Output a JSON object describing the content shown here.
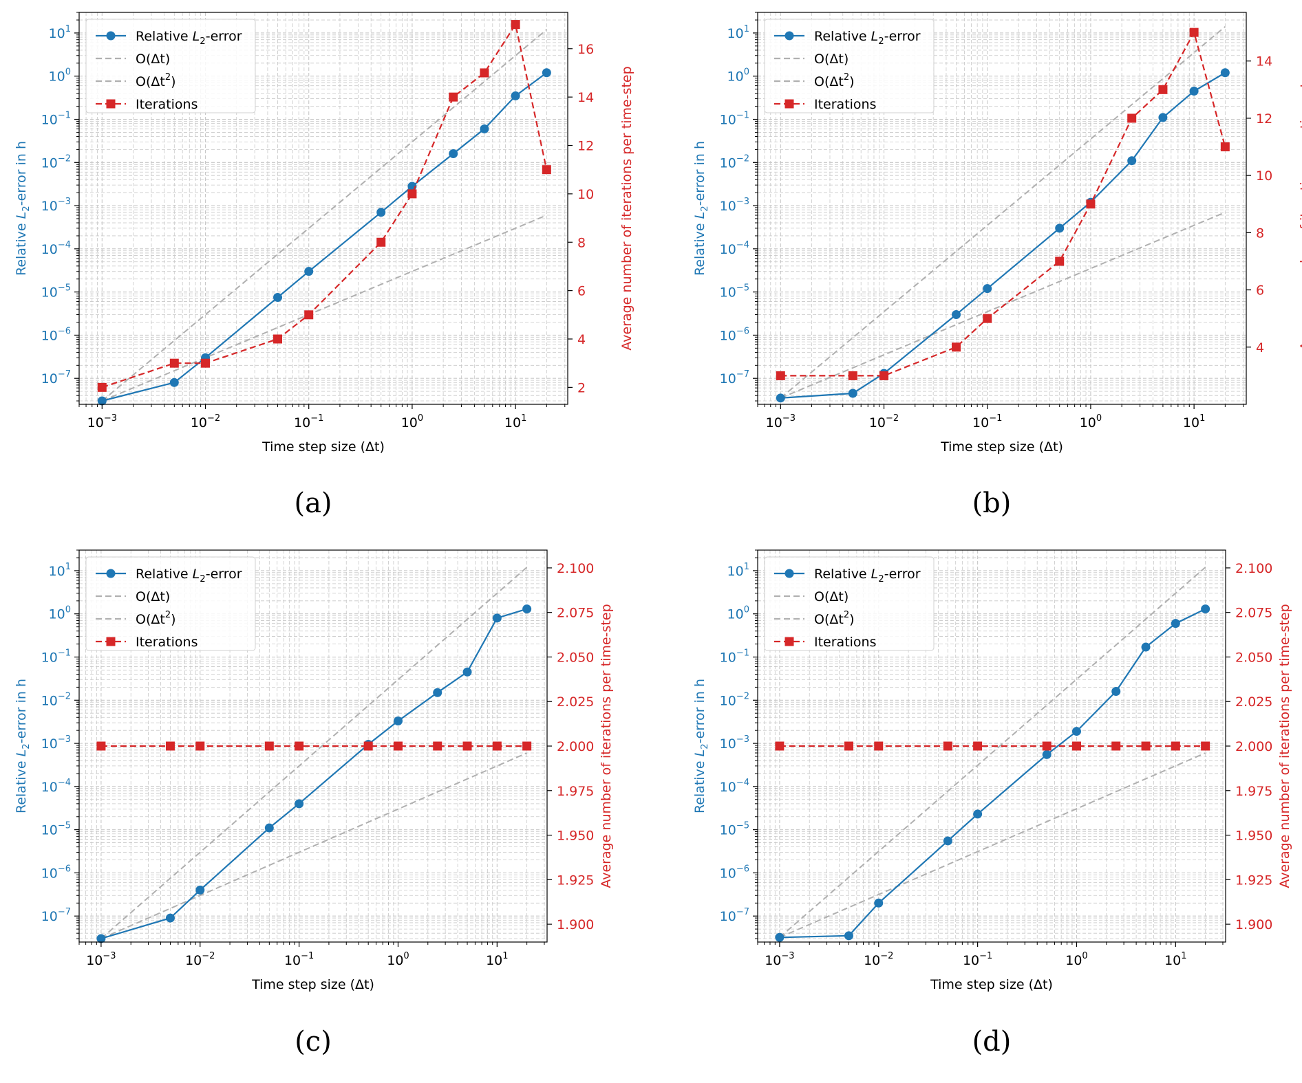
{
  "chart_data": [
    {
      "type": "line",
      "caption": "(a)",
      "xlabel": "Time step size (Δt)",
      "ylabel_left": "Relative L2-error in h",
      "ylabel_right": "Average number of iterations per time-step",
      "x_scale": "log",
      "y_left_scale": "log",
      "xlim": [
        0.0006,
        32
      ],
      "ylim_left": [
        2.5e-08,
        30
      ],
      "ylim_right": [
        1.3,
        17.5
      ],
      "x_ticks": [
        "10−3",
        "10−2",
        "10−1",
        "100",
        "101"
      ],
      "y_left_ticks": [
        "10−7",
        "10−6",
        "10−5",
        "10−4",
        "10−3",
        "10−2",
        "10−1",
        "100",
        "101"
      ],
      "y_right_ticks": [
        "2",
        "4",
        "6",
        "8",
        "10",
        "12",
        "14",
        "16"
      ],
      "y_right_tick_values": [
        2,
        4,
        6,
        8,
        10,
        12,
        14,
        16
      ],
      "legend_position": "top-left",
      "legend": [
        "Relative L2-error",
        "O(Δt)",
        "O(Δt2)",
        "Iterations"
      ],
      "grid": true,
      "x": [
        0.001,
        0.005,
        0.01,
        0.05,
        0.1,
        0.5,
        1,
        2.5,
        5,
        10,
        20
      ],
      "error": [
        3e-08,
        8e-08,
        3e-07,
        7.5e-06,
        3e-05,
        0.0007,
        0.0028,
        0.016,
        0.06,
        0.35,
        1.2
      ],
      "order1": [
        [
          0.001,
          3e-08
        ],
        [
          20,
          0.0006
        ]
      ],
      "order2": [
        [
          0.001,
          3e-08
        ],
        [
          20,
          12
        ]
      ],
      "iterations": [
        2,
        3,
        3,
        4,
        5,
        8,
        10,
        14,
        15,
        17,
        11
      ]
    },
    {
      "type": "line",
      "caption": "(b)",
      "xlabel": "Time step size (Δt)",
      "ylabel_left": "Relative L2-error in h",
      "ylabel_right": "Average number of iterations per time-step",
      "x_scale": "log",
      "y_left_scale": "log",
      "xlim": [
        0.0006,
        32
      ],
      "ylim_left": [
        2.5e-08,
        30
      ],
      "ylim_right": [
        2.0,
        15.7
      ],
      "x_ticks": [
        "10−3",
        "10−2",
        "10−1",
        "100",
        "101"
      ],
      "y_left_ticks": [
        "10−7",
        "10−6",
        "10−5",
        "10−4",
        "10−3",
        "10−2",
        "10−1",
        "100",
        "101"
      ],
      "y_right_ticks": [
        "4",
        "6",
        "8",
        "10",
        "12",
        "14"
      ],
      "y_right_tick_values": [
        4,
        6,
        8,
        10,
        12,
        14
      ],
      "legend_position": "top-left",
      "legend": [
        "Relative L2-error",
        "O(Δt)",
        "O(Δt2)",
        "Iterations"
      ],
      "grid": true,
      "x": [
        0.001,
        0.005,
        0.01,
        0.05,
        0.1,
        0.5,
        1,
        2.5,
        5,
        10,
        20
      ],
      "error": [
        3.5e-08,
        4.5e-08,
        1.3e-07,
        3e-06,
        1.2e-05,
        0.0003,
        0.0012,
        0.011,
        0.11,
        0.45,
        1.2
      ],
      "order1": [
        [
          0.001,
          3.5e-08
        ],
        [
          20,
          0.0007
        ]
      ],
      "order2": [
        [
          0.001,
          3.5e-08
        ],
        [
          20,
          14
        ]
      ],
      "iterations": [
        3,
        3,
        3,
        4,
        5,
        7,
        9,
        12,
        13,
        15,
        11
      ]
    },
    {
      "type": "line",
      "caption": "(c)",
      "xlabel": "Time step size (Δt)",
      "ylabel_left": "Relative L2-error in h",
      "ylabel_right": "Average number of iterations per time-step",
      "x_scale": "log",
      "y_left_scale": "log",
      "xlim": [
        0.0006,
        32
      ],
      "ylim_left": [
        2.5e-08,
        30
      ],
      "ylim_right": [
        1.89,
        2.11
      ],
      "x_ticks": [
        "10−3",
        "10−2",
        "10−1",
        "100",
        "101"
      ],
      "y_left_ticks": [
        "10−7",
        "10−6",
        "10−5",
        "10−4",
        "10−3",
        "10−2",
        "10−1",
        "100",
        "101"
      ],
      "y_right_ticks": [
        "1.900",
        "1.925",
        "1.950",
        "1.975",
        "2.000",
        "2.025",
        "2.050",
        "2.075",
        "2.100"
      ],
      "y_right_tick_values": [
        1.9,
        1.925,
        1.95,
        1.975,
        2.0,
        2.025,
        2.05,
        2.075,
        2.1
      ],
      "legend_position": "top-left",
      "legend": [
        "Relative L2-error",
        "O(Δt)",
        "O(Δt2)",
        "Iterations"
      ],
      "grid": true,
      "x": [
        0.001,
        0.005,
        0.01,
        0.05,
        0.1,
        0.5,
        1,
        2.5,
        5,
        10,
        20
      ],
      "error": [
        3e-08,
        9e-08,
        4e-07,
        1.1e-05,
        4e-05,
        0.00095,
        0.0033,
        0.015,
        0.045,
        0.8,
        1.3
      ],
      "order1": [
        [
          0.001,
          3e-08
        ],
        [
          20,
          0.0006
        ]
      ],
      "order2": [
        [
          0.001,
          3e-08
        ],
        [
          20,
          12
        ]
      ],
      "iterations": [
        2,
        2,
        2,
        2,
        2,
        2,
        2,
        2,
        2,
        2,
        2
      ]
    },
    {
      "type": "line",
      "caption": "(d)",
      "xlabel": "Time step size (Δt)",
      "ylabel_left": "Relative L2-error in h",
      "ylabel_right": "Average number of iterations per time-step",
      "x_scale": "log",
      "y_left_scale": "log",
      "xlim": [
        0.0006,
        32
      ],
      "ylim_left": [
        2.5e-08,
        30
      ],
      "ylim_right": [
        1.89,
        2.11
      ],
      "x_ticks": [
        "10−3",
        "10−2",
        "10−1",
        "100",
        "101"
      ],
      "y_left_ticks": [
        "10−7",
        "10−6",
        "10−5",
        "10−4",
        "10−3",
        "10−2",
        "10−1",
        "100",
        "101"
      ],
      "y_right_ticks": [
        "1.900",
        "1.925",
        "1.950",
        "1.975",
        "2.000",
        "2.025",
        "2.050",
        "2.075",
        "2.100"
      ],
      "y_right_tick_values": [
        1.9,
        1.925,
        1.95,
        1.975,
        2.0,
        2.025,
        2.05,
        2.075,
        2.1
      ],
      "legend_position": "top-left",
      "legend": [
        "Relative L2-error",
        "O(Δt)",
        "O(Δt2)",
        "Iterations"
      ],
      "grid": true,
      "x": [
        0.001,
        0.005,
        0.01,
        0.05,
        0.1,
        0.5,
        1,
        2.5,
        5,
        10,
        20
      ],
      "error": [
        3.2e-08,
        3.5e-08,
        2e-07,
        5.5e-06,
        2.3e-05,
        0.00055,
        0.0019,
        0.016,
        0.17,
        0.6,
        1.3
      ],
      "order1": [
        [
          0.001,
          3.2e-08
        ],
        [
          20,
          0.0006
        ]
      ],
      "order2": [
        [
          0.001,
          3.2e-08
        ],
        [
          20,
          12
        ]
      ],
      "iterations": [
        2,
        2,
        2,
        2,
        2,
        2,
        2,
        2,
        2,
        2,
        2
      ]
    }
  ],
  "colors": {
    "error": "#1f77b4",
    "iterations": "#d62728",
    "reference": "#b0b0b0",
    "grid": "#c8c8c8",
    "axis": "#000000"
  }
}
